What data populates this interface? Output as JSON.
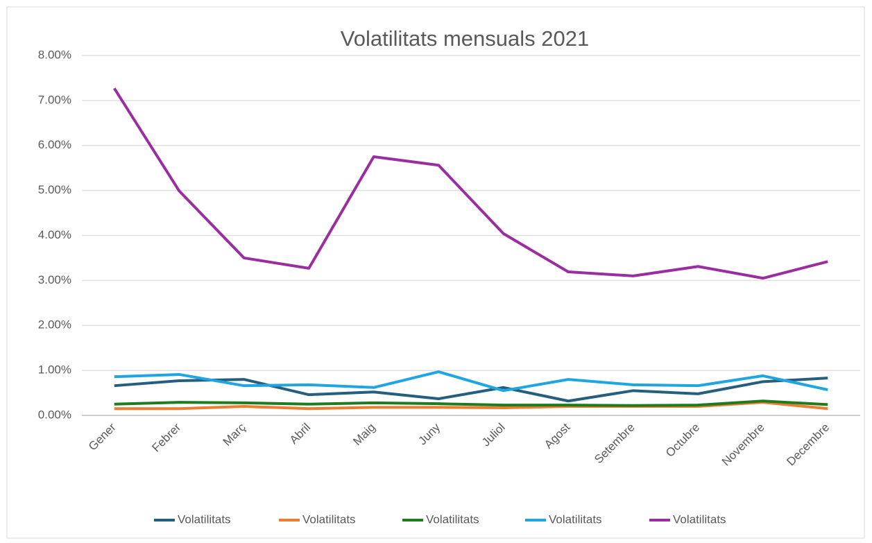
{
  "chart_data": {
    "type": "line",
    "title": "Volatilitats mensuals 2021",
    "categories": [
      "Gener",
      "Febrer",
      "Març",
      "Abril",
      "Maig",
      "Juny",
      "Juliol",
      "Agost",
      "Setembre",
      "Octubre",
      "Novembre",
      "Decembre"
    ],
    "series": [
      {
        "name": "Volatilitats",
        "color": "#255e7e",
        "values": [
          0.66,
          0.77,
          0.8,
          0.46,
          0.52,
          0.37,
          0.62,
          0.32,
          0.55,
          0.48,
          0.75,
          0.83
        ]
      },
      {
        "name": "Volatilitats",
        "color": "#ed7d31",
        "values": [
          0.15,
          0.15,
          0.2,
          0.15,
          0.18,
          0.18,
          0.17,
          0.2,
          0.2,
          0.2,
          0.29,
          0.15
        ]
      },
      {
        "name": "Volatilitats",
        "color": "#1e7b1e",
        "values": [
          0.25,
          0.29,
          0.28,
          0.25,
          0.28,
          0.26,
          0.23,
          0.23,
          0.22,
          0.23,
          0.32,
          0.24
        ]
      },
      {
        "name": "Volatilitats",
        "color": "#1fa6e0",
        "values": [
          0.86,
          0.91,
          0.66,
          0.68,
          0.62,
          0.97,
          0.55,
          0.8,
          0.68,
          0.66,
          0.88,
          0.57
        ]
      },
      {
        "name": "Volatilitats",
        "color": "#9a2ea0",
        "values": [
          7.27,
          4.99,
          3.5,
          3.27,
          5.75,
          5.56,
          4.04,
          3.19,
          3.1,
          3.31,
          3.05,
          3.42
        ]
      }
    ],
    "ylim": [
      0,
      8
    ],
    "yticks": [
      {
        "value": 0,
        "label": "0.00%"
      },
      {
        "value": 1,
        "label": "1.00%"
      },
      {
        "value": 2,
        "label": "2.00%"
      },
      {
        "value": 3,
        "label": "3.00%"
      },
      {
        "value": 4,
        "label": "4.00%"
      },
      {
        "value": 5,
        "label": "5.00%"
      },
      {
        "value": 6,
        "label": "6.00%"
      },
      {
        "value": 7,
        "label": "7.00%"
      },
      {
        "value": 8,
        "label": "8.00%"
      }
    ],
    "grid": true,
    "legend": "bottom"
  }
}
